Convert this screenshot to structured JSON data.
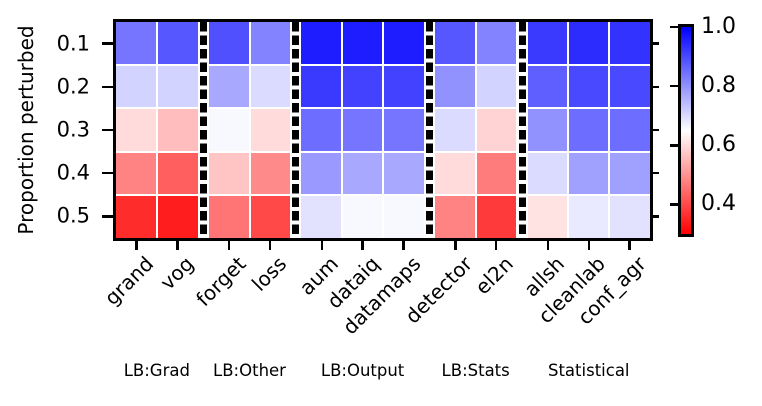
{
  "chart_data": {
    "type": "heatmap",
    "ylabel": "Proportion perturbed",
    "rows": [
      "0.1",
      "0.2",
      "0.3",
      "0.4",
      "0.5"
    ],
    "groups": [
      {
        "label": "LB:Grad",
        "columns": [
          "grand",
          "vog"
        ]
      },
      {
        "label": "LB:Other",
        "columns": [
          "forget",
          "loss"
        ]
      },
      {
        "label": "LB:Output",
        "columns": [
          "aum",
          "dataiq",
          "datamaps"
        ]
      },
      {
        "label": "LB:Stats",
        "columns": [
          "detector",
          "el2n"
        ]
      },
      {
        "label": "Statistical",
        "columns": [
          "allsh",
          "cleanlab",
          "conf_agr"
        ]
      }
    ],
    "columns": [
      "grand",
      "vog",
      "forget",
      "loss",
      "aum",
      "dataiq",
      "datamaps",
      "detector",
      "el2n",
      "allsh",
      "cleanlab",
      "conf_agr"
    ],
    "values": [
      [
        0.84,
        0.88,
        0.89,
        0.82,
        0.96,
        0.96,
        0.96,
        0.88,
        0.82,
        0.92,
        0.94,
        0.93
      ],
      [
        0.71,
        0.71,
        0.77,
        0.7,
        0.92,
        0.91,
        0.91,
        0.8,
        0.71,
        0.87,
        0.9,
        0.9
      ],
      [
        0.6,
        0.56,
        0.66,
        0.6,
        0.85,
        0.84,
        0.84,
        0.7,
        0.59,
        0.8,
        0.85,
        0.85
      ],
      [
        0.48,
        0.43,
        0.57,
        0.49,
        0.79,
        0.77,
        0.77,
        0.6,
        0.47,
        0.7,
        0.78,
        0.78
      ],
      [
        0.36,
        0.34,
        0.46,
        0.4,
        0.69,
        0.66,
        0.66,
        0.48,
        0.38,
        0.61,
        0.68,
        0.69
      ]
    ],
    "colormap": {
      "name": "bwr_r",
      "vmin": 0.3,
      "vmax": 1.0,
      "high_color": "#0000ff",
      "mid_color": "#ffffff",
      "low_color": "#ff0000"
    },
    "colorbar": {
      "ticks": [
        "1.0",
        "0.8",
        "0.6",
        "0.4"
      ],
      "position": "right"
    },
    "layout": {
      "grid": "white gridlines between cells",
      "group_separator": "vertical black dashed line",
      "x_tick_label_rotation_deg": 45,
      "legend": "none"
    }
  }
}
